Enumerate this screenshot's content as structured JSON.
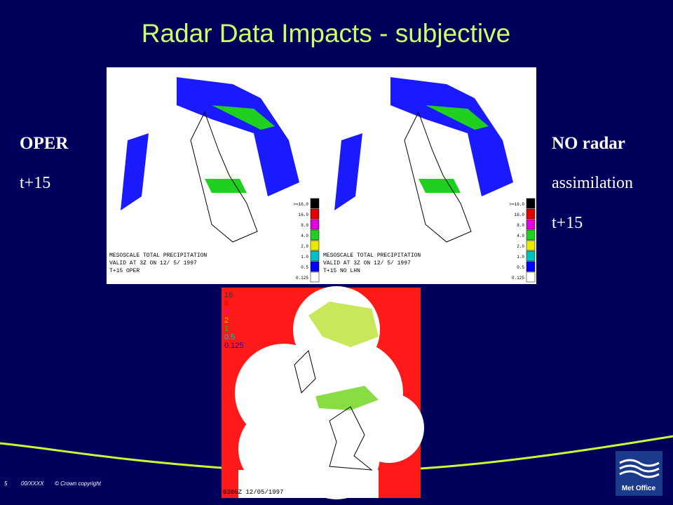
{
  "title": "Radar Data Impacts - subjective",
  "left_label": [
    "OPER",
    "t+15"
  ],
  "right_label": [
    "NO radar",
    "assimilation",
    "t+15"
  ],
  "footer": {
    "page": "5",
    "ref": "00/XXXX",
    "copyright": "© Crown copyright"
  },
  "logo": "Met Office",
  "panels": [
    {
      "caption": [
        "MESOSCALE TOTAL PRECIPITATION",
        "VALID AT 3Z ON 12/ 5/ 1997",
        "T+15   OPER"
      ],
      "legend": [
        ">=16.0",
        "16.0",
        "8.0",
        "4.0",
        "2.0",
        "1.0",
        "0.5",
        "0.125"
      ]
    },
    {
      "caption": [
        "MESOSCALE TOTAL PRECIPITATION",
        "VALID AT 3Z ON 12/ 5/ 1997",
        "T+15   NO LHN"
      ],
      "legend": [
        ">=16.0",
        "16.0",
        "8.0",
        "4.0",
        "2.0",
        "1.0",
        "0.5",
        "0.125"
      ]
    }
  ],
  "radar": {
    "legend": [
      "16",
      "8",
      "4",
      "2",
      "1",
      "0.5",
      "0.125"
    ],
    "timestamp": "0300Z 12/05/1997"
  }
}
